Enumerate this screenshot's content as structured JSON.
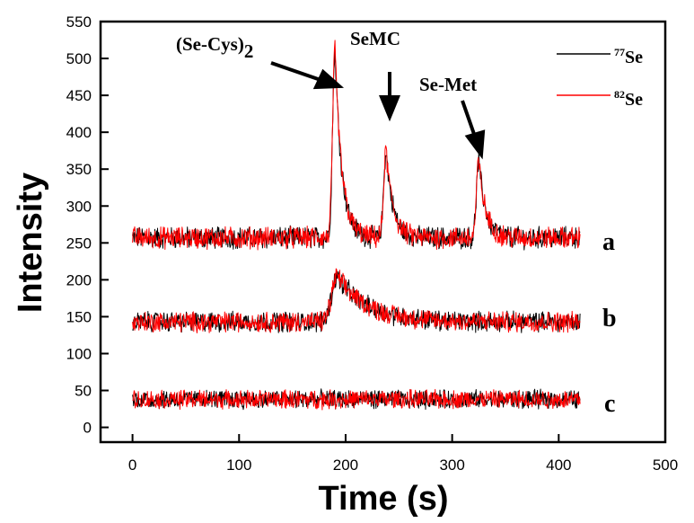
{
  "chart_data": {
    "type": "line",
    "xlabel": "Time (s)",
    "ylabel": "Intensity",
    "xlim": [
      -30,
      500
    ],
    "ylim": [
      -20,
      550
    ],
    "xticks": [
      0,
      100,
      200,
      300,
      400,
      500
    ],
    "yticks": [
      0,
      50,
      100,
      150,
      200,
      250,
      300,
      350,
      400,
      450,
      500,
      550
    ],
    "x_range": [
      0,
      420
    ],
    "legend": {
      "position": "top-right",
      "entries": [
        {
          "mass": "77",
          "element": "Se",
          "color": "#000000"
        },
        {
          "mass": "82",
          "element": "Se",
          "color": "#ff0000"
        }
      ]
    },
    "traces": [
      {
        "label": "a",
        "baseline": 257,
        "noise": 13,
        "peaks": [
          {
            "name": "(Se-Cys)",
            "subscript": "2",
            "time": 190,
            "height": 510
          },
          {
            "name": "SeMC",
            "time": 238,
            "height": 375
          },
          {
            "name": "Se-Met",
            "time": 325,
            "height": 360
          }
        ]
      },
      {
        "label": "b",
        "baseline": 143,
        "noise": 12,
        "broad_peak": {
          "time": 192,
          "height": 205,
          "tail_to": 280
        }
      },
      {
        "label": "c",
        "baseline": 38,
        "noise": 11
      }
    ]
  },
  "colors": {
    "isotope_77": "#000000",
    "isotope_82": "#ff0000"
  }
}
